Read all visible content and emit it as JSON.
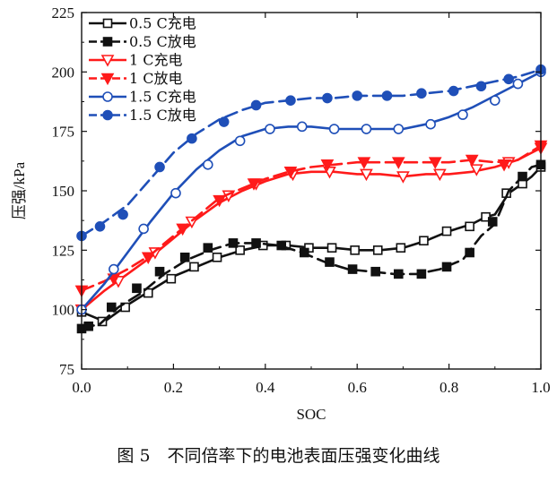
{
  "figure_caption": "图 5　不同倍率下的电池表面压强变化曲线",
  "colors": {
    "black": "#111111",
    "red": "#ff1a1a",
    "blue": "#1f4fb8"
  },
  "chart_data": {
    "type": "line",
    "title": "",
    "xlabel": "SOC",
    "ylabel": "压强/kPa",
    "xlim": [
      0.0,
      1.0
    ],
    "ylim": [
      75,
      225
    ],
    "xticks": [
      "0.0",
      "0.2",
      "0.4",
      "0.6",
      "0.8",
      "1.0"
    ],
    "yticks": [
      "75",
      "100",
      "125",
      "150",
      "175",
      "200",
      "225"
    ],
    "xtick_values": [
      0.0,
      0.2,
      0.4,
      0.6,
      0.8,
      1.0
    ],
    "ytick_values": [
      75,
      100,
      125,
      150,
      175,
      200,
      225
    ],
    "legend_position": "top-left",
    "series": [
      {
        "name": "0.5 C充电",
        "color": "#111111",
        "dash": "solid",
        "marker": "square-open",
        "x": [
          0.0,
          0.05,
          0.1,
          0.15,
          0.2,
          0.25,
          0.3,
          0.35,
          0.4,
          0.45,
          0.5,
          0.55,
          0.6,
          0.65,
          0.7,
          0.75,
          0.8,
          0.85,
          0.88,
          0.9,
          0.93,
          0.96,
          0.98,
          1.0
        ],
        "y": [
          99,
          95,
          102,
          108,
          114,
          118,
          122,
          125,
          127,
          127,
          126,
          126,
          125,
          125,
          126,
          129,
          133,
          136,
          139,
          140,
          149,
          153,
          156,
          160
        ],
        "marker_x": [
          0.0,
          0.045,
          0.095,
          0.145,
          0.195,
          0.245,
          0.295,
          0.345,
          0.395,
          0.445,
          0.495,
          0.545,
          0.595,
          0.645,
          0.695,
          0.745,
          0.795,
          0.845,
          0.88,
          0.925,
          0.96,
          1.0
        ],
        "marker_y": [
          99,
          95,
          101,
          107,
          113,
          118,
          122,
          125,
          127,
          127,
          126,
          126,
          125,
          125,
          126,
          129,
          133,
          135,
          139,
          149,
          153,
          160
        ]
      },
      {
        "name": "0.5 C放电",
        "color": "#111111",
        "dash": "long",
        "marker": "square-filled",
        "x": [
          0.0,
          0.04,
          0.08,
          0.13,
          0.18,
          0.23,
          0.28,
          0.33,
          0.38,
          0.43,
          0.48,
          0.53,
          0.58,
          0.63,
          0.68,
          0.73,
          0.78,
          0.83,
          0.87,
          0.9,
          0.93,
          0.96,
          0.98,
          1.0
        ],
        "y": [
          92,
          94,
          101,
          107,
          115,
          121,
          125,
          128,
          128,
          127,
          124,
          120,
          117,
          116,
          115,
          115,
          117,
          121,
          131,
          136,
          150,
          156,
          160,
          161
        ],
        "marker_x": [
          0.0,
          0.015,
          0.065,
          0.12,
          0.17,
          0.225,
          0.275,
          0.33,
          0.38,
          0.435,
          0.485,
          0.54,
          0.59,
          0.64,
          0.69,
          0.74,
          0.795,
          0.845,
          0.895,
          0.96,
          1.0
        ],
        "marker_y": [
          92,
          93,
          101,
          109,
          116,
          122,
          126,
          128,
          128,
          127,
          124,
          120,
          117,
          116,
          115,
          115,
          118,
          124,
          137,
          156,
          161
        ]
      },
      {
        "name": "1 C充电",
        "color": "#ff1a1a",
        "dash": "solid",
        "marker": "triangle-down-open",
        "x": [
          0.0,
          0.05,
          0.1,
          0.15,
          0.2,
          0.25,
          0.3,
          0.35,
          0.4,
          0.45,
          0.5,
          0.55,
          0.6,
          0.65,
          0.7,
          0.75,
          0.8,
          0.85,
          0.9,
          0.95,
          0.98,
          1.0
        ],
        "y": [
          100,
          108,
          115,
          122,
          130,
          138,
          145,
          150,
          154,
          157,
          158,
          158,
          157,
          157,
          156,
          157,
          157,
          158,
          160,
          163,
          166,
          168
        ],
        "marker_x": [
          0.0,
          0.08,
          0.16,
          0.24,
          0.32,
          0.38,
          0.46,
          0.54,
          0.62,
          0.7,
          0.78,
          0.86,
          0.93,
          1.0
        ],
        "marker_y": [
          100,
          112,
          124,
          137,
          148,
          153,
          157,
          158,
          157,
          156,
          157,
          159,
          162,
          168
        ]
      },
      {
        "name": "1 C放电",
        "color": "#ff1a1a",
        "dash": "long",
        "marker": "triangle-down-filled",
        "x": [
          0.0,
          0.05,
          0.1,
          0.15,
          0.2,
          0.25,
          0.3,
          0.35,
          0.4,
          0.45,
          0.5,
          0.55,
          0.6,
          0.65,
          0.7,
          0.75,
          0.8,
          0.85,
          0.9,
          0.95,
          1.0
        ],
        "y": [
          108,
          112,
          117,
          123,
          131,
          139,
          147,
          151,
          155,
          158,
          160,
          161,
          162,
          162,
          162,
          162,
          162,
          163,
          162,
          163,
          169
        ],
        "marker_x": [
          0.0,
          0.07,
          0.145,
          0.22,
          0.3,
          0.375,
          0.455,
          0.535,
          0.615,
          0.69,
          0.77,
          0.85,
          0.92,
          1.0
        ],
        "marker_y": [
          108,
          113,
          122,
          134,
          146,
          153,
          158,
          161,
          162,
          162,
          162,
          163,
          161,
          169
        ]
      },
      {
        "name": "1.5 C充电",
        "color": "#1f4fb8",
        "dash": "solid",
        "marker": "circle-open",
        "x": [
          0.0,
          0.05,
          0.1,
          0.15,
          0.2,
          0.25,
          0.3,
          0.35,
          0.4,
          0.45,
          0.5,
          0.55,
          0.6,
          0.65,
          0.7,
          0.75,
          0.8,
          0.85,
          0.9,
          0.95,
          1.0
        ],
        "y": [
          100,
          111,
          124,
          137,
          149,
          159,
          167,
          173,
          176,
          177,
          177,
          176,
          176,
          176,
          176,
          178,
          181,
          185,
          190,
          195,
          200
        ],
        "marker_x": [
          0.0,
          0.07,
          0.135,
          0.205,
          0.275,
          0.345,
          0.41,
          0.48,
          0.55,
          0.62,
          0.69,
          0.76,
          0.83,
          0.9,
          0.95,
          1.0
        ],
        "marker_y": [
          100,
          117,
          134,
          149,
          161,
          171,
          176,
          177,
          176,
          176,
          176,
          178,
          182,
          188,
          195,
          200
        ]
      },
      {
        "name": "1.5 C放电",
        "color": "#1f4fb8",
        "dash": "long",
        "marker": "circle-filled",
        "x": [
          0.0,
          0.05,
          0.1,
          0.15,
          0.2,
          0.25,
          0.3,
          0.35,
          0.4,
          0.45,
          0.5,
          0.55,
          0.6,
          0.65,
          0.7,
          0.75,
          0.8,
          0.85,
          0.9,
          0.95,
          1.0
        ],
        "y": [
          131,
          137,
          144,
          155,
          166,
          174,
          180,
          184,
          187,
          188,
          189,
          189,
          190,
          190,
          190,
          191,
          192,
          194,
          196,
          198,
          201
        ],
        "marker_x": [
          0.0,
          0.04,
          0.09,
          0.17,
          0.24,
          0.31,
          0.38,
          0.455,
          0.535,
          0.6,
          0.665,
          0.74,
          0.81,
          0.87,
          0.93,
          1.0
        ],
        "marker_y": [
          131,
          135,
          140,
          160,
          172,
          179,
          186,
          188,
          189,
          190,
          190,
          191,
          192,
          194,
          197,
          201
        ]
      }
    ]
  }
}
